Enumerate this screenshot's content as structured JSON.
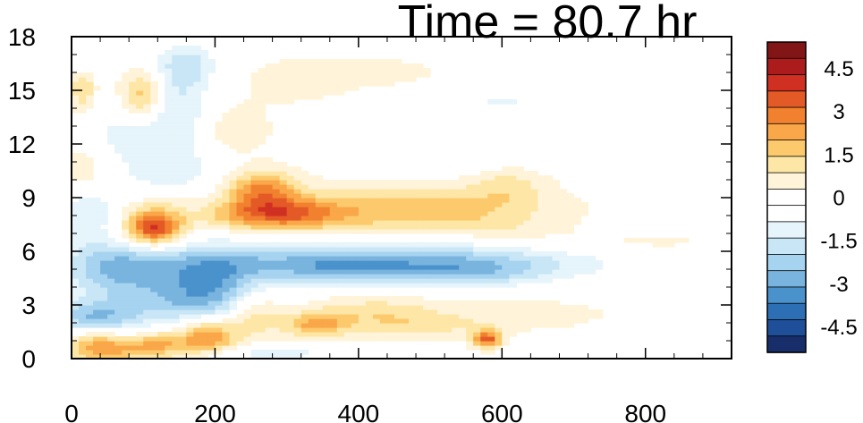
{
  "chart_data": {
    "type": "heatmap",
    "title": "Time = 80.7 hr",
    "xlabel": "",
    "ylabel": "",
    "xlim": [
      0,
      920
    ],
    "ylim": [
      0,
      18
    ],
    "x_ticks": [
      0,
      200,
      400,
      600,
      800
    ],
    "y_ticks": [
      0,
      3,
      6,
      9,
      12,
      15,
      18
    ],
    "grid": false,
    "colorbar": {
      "placement": "right",
      "range": [
        -5.4,
        5.4
      ],
      "labels": [
        "4.5",
        "3",
        "1.5",
        "0",
        "-1.5",
        "-3",
        "-4.5"
      ],
      "label_values": [
        4.5,
        3,
        1.5,
        0,
        -1.5,
        -3,
        -4.5
      ],
      "colors": [
        "#182e6a",
        "#1f4f99",
        "#2d6fb5",
        "#4a92cc",
        "#78b4de",
        "#a6d3ef",
        "#c8e6f6",
        "#e6f4fb",
        "#ffffff",
        "#ffffff",
        "#fff4d9",
        "#fde6a6",
        "#fcca6c",
        "#f9a748",
        "#f2812f",
        "#e45a26",
        "#d03022",
        "#ad1c1c",
        "#821516"
      ]
    },
    "features": [
      {
        "x": 430,
        "y": 5.5,
        "value": -2.4,
        "sx": 220,
        "sy": 0.8
      },
      {
        "x": 540,
        "y": 4.8,
        "value": -1.4,
        "sx": 90,
        "sy": 0.6
      },
      {
        "x": 140,
        "y": 3.5,
        "value": -2.0,
        "sx": 90,
        "sy": 1.5
      },
      {
        "x": 60,
        "y": 5.2,
        "value": -1.6,
        "sx": 50,
        "sy": 1.0
      },
      {
        "x": 200,
        "y": 4.0,
        "value": -1.6,
        "sx": 45,
        "sy": 1.5
      },
      {
        "x": 30,
        "y": 2.2,
        "value": -2.2,
        "sx": 40,
        "sy": 0.7
      },
      {
        "x": 25,
        "y": 8.2,
        "value": -1.4,
        "sx": 25,
        "sy": 1.2
      },
      {
        "x": 130,
        "y": 10.0,
        "value": -1.2,
        "sx": 55,
        "sy": 1.2
      },
      {
        "x": 150,
        "y": 14.0,
        "value": -1.5,
        "sx": 35,
        "sy": 2.0
      },
      {
        "x": 160,
        "y": 16.5,
        "value": -1.3,
        "sx": 30,
        "sy": 0.8
      },
      {
        "x": 15,
        "y": 16.8,
        "value": -1.6,
        "sx": 15,
        "sy": 0.8
      },
      {
        "x": 70,
        "y": 12.5,
        "value": -1.0,
        "sx": 40,
        "sy": 1.0
      },
      {
        "x": 650,
        "y": 14.8,
        "value": -0.6,
        "sx": 120,
        "sy": 1.5
      },
      {
        "x": 520,
        "y": 14.2,
        "value": -0.5,
        "sx": 100,
        "sy": 1.5
      },
      {
        "x": 830,
        "y": 15.5,
        "value": -0.5,
        "sx": 70,
        "sy": 1.5
      },
      {
        "x": 270,
        "y": 0.3,
        "value": -1.2,
        "sx": 80,
        "sy": 0.3
      },
      {
        "x": 115,
        "y": 7.3,
        "value": 3.8,
        "sx": 28,
        "sy": 0.7
      },
      {
        "x": 265,
        "y": 9.4,
        "value": 2.6,
        "sx": 35,
        "sy": 0.8
      },
      {
        "x": 310,
        "y": 8.1,
        "value": 2.0,
        "sx": 45,
        "sy": 0.6
      },
      {
        "x": 420,
        "y": 8.2,
        "value": 1.4,
        "sx": 130,
        "sy": 0.9
      },
      {
        "x": 530,
        "y": 8.6,
        "value": 0.8,
        "sx": 110,
        "sy": 0.9
      },
      {
        "x": 610,
        "y": 9.8,
        "value": 0.9,
        "sx": 35,
        "sy": 0.8
      },
      {
        "x": 235,
        "y": 8.0,
        "value": 1.3,
        "sx": 40,
        "sy": 0.6
      },
      {
        "x": 40,
        "y": 0.8,
        "value": 2.6,
        "sx": 35,
        "sy": 0.7
      },
      {
        "x": 115,
        "y": 0.8,
        "value": 2.4,
        "sx": 35,
        "sy": 0.6
      },
      {
        "x": 190,
        "y": 1.3,
        "value": 3.0,
        "sx": 30,
        "sy": 0.8
      },
      {
        "x": 255,
        "y": 2.5,
        "value": 1.8,
        "sx": 30,
        "sy": 1.0
      },
      {
        "x": 340,
        "y": 1.9,
        "value": 2.0,
        "sx": 30,
        "sy": 0.5
      },
      {
        "x": 420,
        "y": 2.6,
        "value": 1.2,
        "sx": 70,
        "sy": 0.7
      },
      {
        "x": 580,
        "y": 1.1,
        "value": 3.2,
        "sx": 14,
        "sy": 0.35
      },
      {
        "x": 640,
        "y": 2.5,
        "value": 0.6,
        "sx": 80,
        "sy": 0.6
      },
      {
        "x": 490,
        "y": 1.8,
        "value": 0.8,
        "sx": 70,
        "sy": 0.5
      },
      {
        "x": 100,
        "y": 14.8,
        "value": 2.0,
        "sx": 20,
        "sy": 1.0
      },
      {
        "x": 15,
        "y": 15.5,
        "value": 1.6,
        "sx": 12,
        "sy": 1.2
      },
      {
        "x": 130,
        "y": 8.8,
        "value": 1.0,
        "sx": 40,
        "sy": 0.8
      },
      {
        "x": 20,
        "y": 10.5,
        "value": 1.0,
        "sx": 20,
        "sy": 1.0
      },
      {
        "x": 470,
        "y": 15.8,
        "value": 0.8,
        "sx": 70,
        "sy": 0.8
      },
      {
        "x": 320,
        "y": 15.5,
        "value": 0.6,
        "sx": 60,
        "sy": 1.0
      },
      {
        "x": 220,
        "y": 12.8,
        "value": 0.8,
        "sx": 40,
        "sy": 1.0
      },
      {
        "x": 780,
        "y": 6.4,
        "value": 0.6,
        "sx": 110,
        "sy": 0.5
      },
      {
        "x": 560,
        "y": 11.5,
        "value": -0.5,
        "sx": 80,
        "sy": 0.8
      },
      {
        "x": 360,
        "y": 5.0,
        "value": -1.0,
        "sx": 60,
        "sy": 0.6
      },
      {
        "x": 80,
        "y": 1.2,
        "value": -0.8,
        "sx": 20,
        "sy": 0.4
      },
      {
        "x": 600,
        "y": 7.2,
        "value": 0.5,
        "sx": 60,
        "sy": 0.5
      }
    ]
  }
}
